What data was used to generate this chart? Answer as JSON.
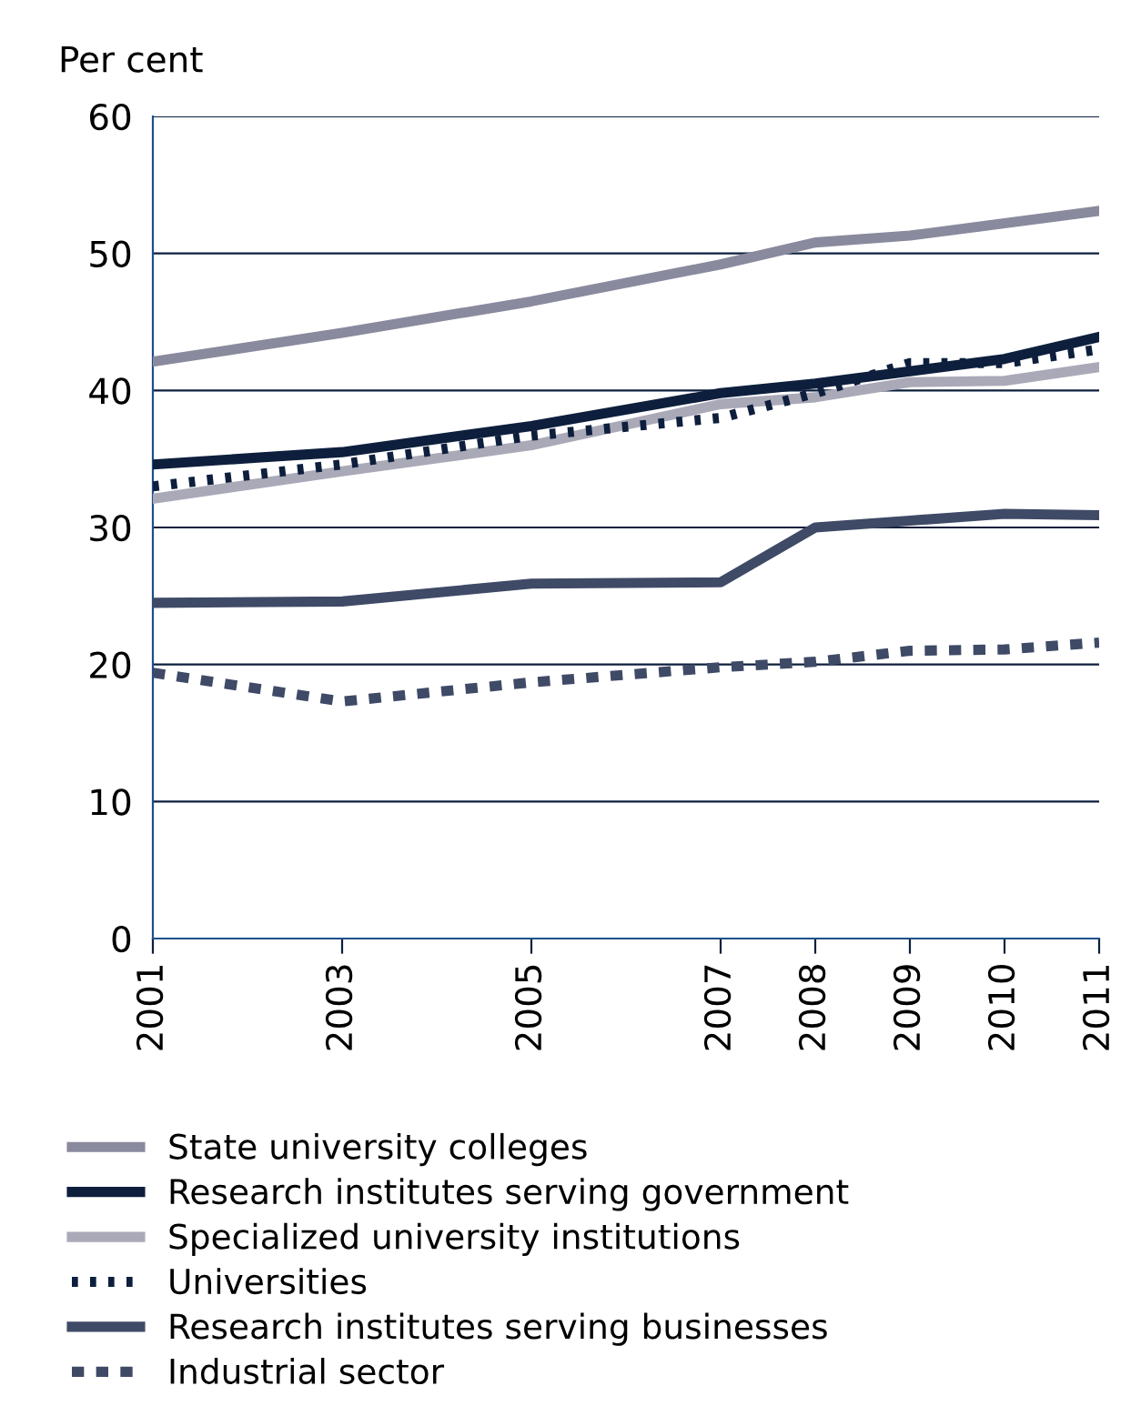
{
  "chart_data": {
    "type": "line",
    "ylabel": "Per cent",
    "x": [
      2001,
      2003,
      2005,
      2007,
      2008,
      2009,
      2010,
      2011
    ],
    "xlim": [
      2001,
      2011
    ],
    "xticks": [
      2001,
      2003,
      2005,
      2007,
      2008,
      2009,
      2010,
      2011
    ],
    "ylim": [
      0,
      60
    ],
    "yticks": [
      0,
      10,
      20,
      30,
      40,
      50,
      60
    ],
    "grid": "y",
    "legend": "bottom",
    "marker": "none",
    "series": [
      {
        "name": "State university colleges",
        "color": "#8a8a9e",
        "line_style": "solid",
        "values": [
          42.1,
          44.2,
          46.5,
          49.2,
          50.8,
          51.3,
          52.2,
          53.1
        ]
      },
      {
        "name": "Research institutes serving government",
        "color": "#0d1f3c",
        "line_style": "solid",
        "values": [
          34.6,
          35.5,
          37.4,
          39.8,
          40.5,
          41.4,
          42.3,
          43.9
        ]
      },
      {
        "name": "Specialized university institutions",
        "color": "#a9a9b8",
        "line_style": "solid",
        "values": [
          32.1,
          34.1,
          36.0,
          39.0,
          39.5,
          40.6,
          40.7,
          41.7
        ]
      },
      {
        "name": "Universities",
        "color": "#0d1f3c",
        "line_style": "dotted",
        "values": [
          33.0,
          34.6,
          36.7,
          38.0,
          39.8,
          42.0,
          42.0,
          43.0
        ]
      },
      {
        "name": "Research institutes serving businesses",
        "color": "#3f4a66",
        "line_style": "solid",
        "values": [
          24.5,
          24.6,
          25.9,
          26.0,
          30.0,
          30.5,
          31.0,
          30.9
        ]
      },
      {
        "name": "Industrial sector",
        "color": "#3f4a66",
        "line_style": "dashed",
        "values": [
          19.4,
          17.3,
          18.7,
          19.8,
          20.2,
          21.0,
          21.1,
          21.6
        ]
      }
    ]
  }
}
